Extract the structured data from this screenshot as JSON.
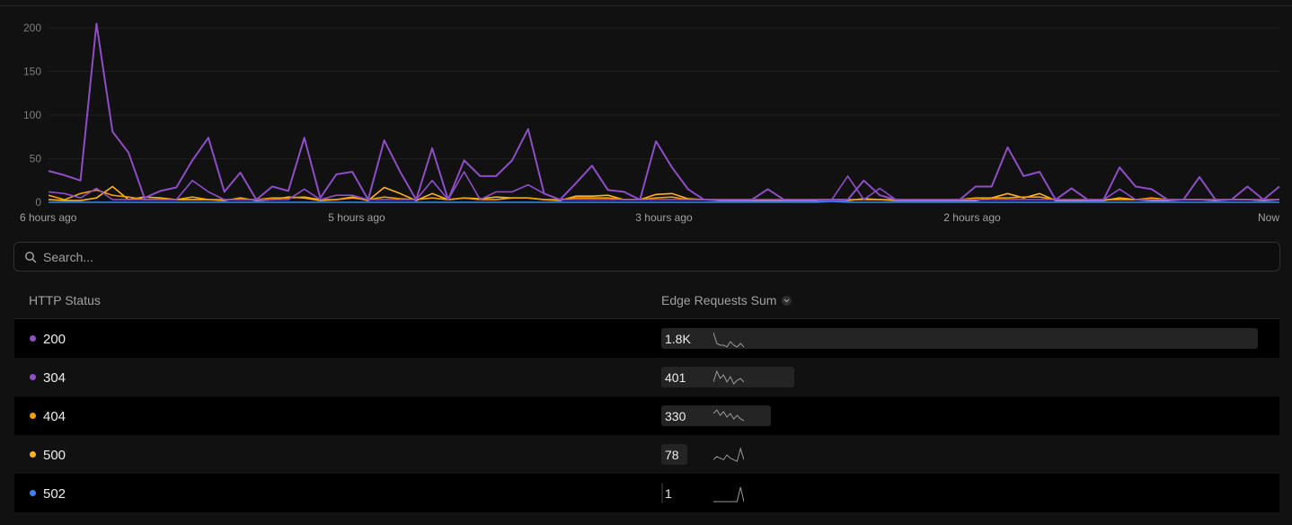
{
  "chart_data": {
    "type": "line",
    "y_ticks": [
      "200",
      "150",
      "100",
      "50",
      "0"
    ],
    "ylim": [
      0,
      210
    ],
    "x_labels": [
      "6 hours ago",
      "5 hours ago",
      "3 hours ago",
      "2 hours ago",
      "Now"
    ],
    "series": [
      {
        "name": "200",
        "color": "#8e4ec6",
        "values": [
          36,
          31,
          25,
          205,
          81,
          57,
          5,
          13,
          17,
          48,
          74,
          12,
          34,
          3,
          18,
          13,
          74,
          5,
          32,
          35,
          3,
          71,
          35,
          3,
          62,
          3,
          48,
          30,
          30,
          48,
          84,
          10,
          3,
          22,
          42,
          14,
          12,
          3,
          70,
          40,
          15,
          3,
          3,
          3,
          3,
          15,
          3,
          3,
          3,
          3,
          3,
          25,
          8,
          3,
          3,
          3,
          3,
          3,
          18,
          18,
          63,
          30,
          35,
          3,
          16,
          3,
          3,
          40,
          18,
          15,
          3,
          3,
          29,
          3,
          3,
          18,
          3,
          18
        ]
      },
      {
        "name": "304",
        "color": "#8e4ec6",
        "values": [
          12,
          10,
          5,
          16,
          3,
          3,
          3,
          3,
          3,
          25,
          12,
          3,
          3,
          3,
          3,
          3,
          15,
          3,
          8,
          8,
          3,
          3,
          3,
          3,
          25,
          3,
          35,
          3,
          12,
          12,
          20,
          10,
          3,
          3,
          3,
          3,
          3,
          3,
          3,
          3,
          3,
          3,
          3,
          3,
          3,
          3,
          3,
          3,
          3,
          3,
          30,
          3,
          16,
          3,
          3,
          3,
          3,
          3,
          3,
          3,
          3,
          3,
          3,
          3,
          3,
          3,
          3,
          15,
          3,
          3,
          3,
          3,
          3,
          3,
          3,
          3,
          3,
          3
        ]
      },
      {
        "name": "404",
        "color": "#f59e0b",
        "values": [
          8,
          3,
          10,
          14,
          8,
          6,
          3,
          3,
          3,
          6,
          3,
          3,
          3,
          3,
          5,
          5,
          6,
          3,
          3,
          5,
          3,
          6,
          4,
          3,
          5,
          3,
          5,
          3,
          3,
          5,
          5,
          3,
          3,
          5,
          5,
          5,
          3,
          3,
          5,
          6,
          3,
          3,
          3,
          3,
          3,
          3,
          3,
          3,
          3,
          3,
          3,
          3,
          3,
          3,
          3,
          3,
          3,
          3,
          5,
          5,
          5,
          6,
          6,
          3,
          3,
          3,
          3,
          3,
          3,
          5,
          3,
          3,
          3,
          3,
          3,
          3,
          3,
          3
        ]
      },
      {
        "name": "500",
        "color": "#ffb224",
        "values": [
          3,
          2,
          2,
          5,
          18,
          3,
          6,
          5,
          3,
          3,
          3,
          2,
          5,
          2,
          3,
          6,
          5,
          2,
          3,
          6,
          2,
          17,
          10,
          2,
          10,
          3,
          5,
          4,
          6,
          5,
          5,
          3,
          2,
          7,
          7,
          8,
          3,
          3,
          9,
          10,
          4,
          3,
          2,
          2,
          2,
          2,
          2,
          2,
          2,
          3,
          2,
          4,
          3,
          2,
          2,
          2,
          2,
          2,
          2,
          5,
          10,
          5,
          10,
          2,
          2,
          2,
          2,
          5,
          3,
          2,
          2,
          3,
          3,
          2,
          3,
          3,
          2,
          3
        ]
      },
      {
        "name": "502",
        "color": "#3b82f6",
        "values": [
          0,
          0,
          0,
          0,
          0,
          0,
          0,
          0,
          0,
          0,
          0,
          0,
          0,
          0,
          0,
          0,
          0,
          0,
          0,
          0,
          0,
          0,
          0,
          0,
          0,
          0,
          0,
          0,
          0,
          0,
          0,
          0,
          0,
          0,
          0,
          0,
          0,
          0,
          0,
          0,
          0,
          0,
          0,
          0,
          0,
          0,
          0,
          0,
          0,
          1,
          0,
          0,
          0,
          0,
          0,
          0,
          0,
          0,
          0,
          0,
          0,
          0,
          0,
          0,
          0,
          0,
          0,
          0,
          0,
          0,
          0,
          0,
          0,
          0,
          0,
          0,
          0,
          0
        ]
      }
    ]
  },
  "search": {
    "placeholder": "Search..."
  },
  "table": {
    "headers": {
      "status": "HTTP Status",
      "requests": "Edge Requests Sum"
    },
    "rows": [
      {
        "status": "200",
        "value": "1.8K",
        "fraction": 1.0,
        "dot": "#8e4ec6",
        "spark": [
          8,
          2,
          1,
          1,
          0,
          3,
          1,
          0,
          2,
          0
        ]
      },
      {
        "status": "304",
        "value": "401",
        "fraction": 0.2226,
        "dot": "#8e4ec6",
        "spark": [
          2,
          8,
          4,
          6,
          2,
          5,
          1,
          3,
          4,
          2
        ]
      },
      {
        "status": "404",
        "value": "330",
        "fraction": 0.1833,
        "dot": "#f59e0b",
        "spark": [
          6,
          8,
          5,
          7,
          4,
          6,
          3,
          5,
          3,
          2
        ]
      },
      {
        "status": "500",
        "value": "78",
        "fraction": 0.0433,
        "dot": "#ffb224",
        "spark": [
          2,
          4,
          3,
          2,
          5,
          3,
          2,
          1,
          9,
          2
        ]
      },
      {
        "status": "502",
        "value": "1",
        "fraction": 0.0006,
        "dot": "#3b82f6",
        "spark": [
          0,
          0,
          0,
          0,
          0,
          0,
          0,
          0,
          10,
          0
        ]
      }
    ]
  }
}
